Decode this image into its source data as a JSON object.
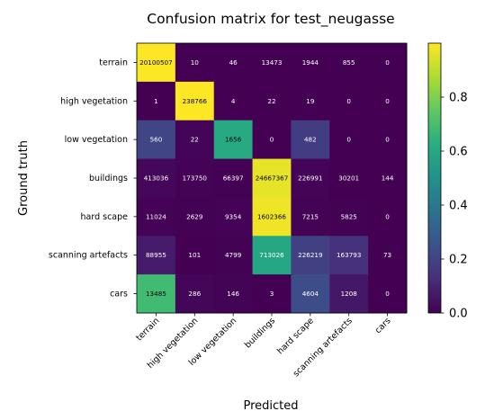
{
  "chart_data": {
    "type": "heatmap",
    "title": "Confusion matrix for test_neugasse",
    "xlabel": "Predicted",
    "ylabel": "Ground truth",
    "colormap": "viridis",
    "x_categories": [
      "terrain",
      "high vegetation",
      "low vegetation",
      "buildings",
      "hard scape",
      "scanning artefacts",
      "cars"
    ],
    "y_categories": [
      "terrain",
      "high vegetation",
      "low vegetation",
      "buildings",
      "hard scape",
      "scanning artefacts",
      "cars"
    ],
    "values": [
      [
        20100507,
        10,
        46,
        13473,
        1944,
        855,
        0
      ],
      [
        1,
        238766,
        4,
        22,
        19,
        0,
        0
      ],
      [
        560,
        22,
        1656,
        0,
        482,
        0,
        0
      ],
      [
        413036,
        173750,
        66397,
        24667367,
        226991,
        30201,
        144
      ],
      [
        11024,
        2629,
        9354,
        1602366,
        7215,
        5825,
        0
      ],
      [
        88955,
        101,
        4799,
        713026,
        226219,
        163793,
        73
      ],
      [
        13485,
        286,
        146,
        3,
        4604,
        1208,
        0
      ]
    ],
    "colorbar_ticks": [
      "0.0",
      "0.2",
      "0.4",
      "0.6",
      "0.8"
    ],
    "colorbar_range": [
      0,
      1
    ]
  }
}
